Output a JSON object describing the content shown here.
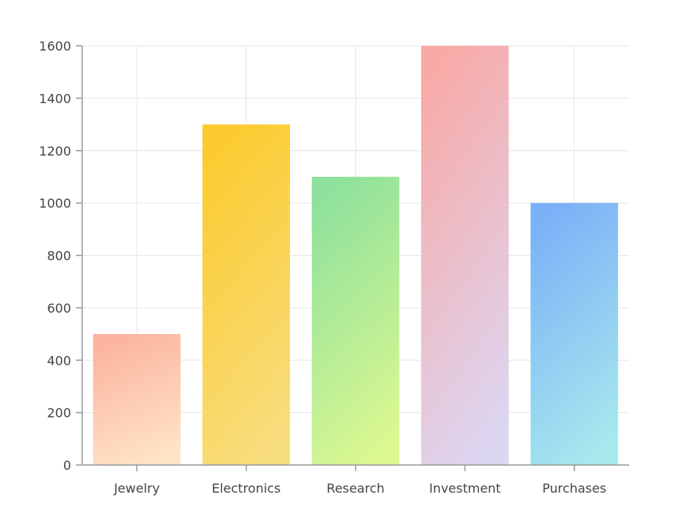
{
  "chart_data": {
    "type": "bar",
    "title": "",
    "xlabel": "",
    "ylabel": "",
    "categories": [
      "Jewelry",
      "Electronics",
      "Research",
      "Investment",
      "Purchases"
    ],
    "values": [
      500,
      1300,
      1100,
      1600,
      1000
    ],
    "ylim": [
      0,
      1600
    ],
    "yticks": [
      0,
      200,
      400,
      600,
      800,
      1000,
      1200,
      1400,
      1600
    ],
    "grid": true,
    "legend": "none",
    "bar_gradients": [
      {
        "top": "#fbb49e",
        "bottom": "#ffe4c8"
      },
      {
        "top": "#fbcb2f",
        "bottom": "#f8dd7e"
      },
      {
        "top": "#8ee19c",
        "bottom": "#dcf891"
      },
      {
        "top": "#f8aaa7",
        "bottom": "#dcd6f2"
      },
      {
        "top": "#7bb1f7",
        "bottom": "#a7e9ed"
      }
    ]
  }
}
